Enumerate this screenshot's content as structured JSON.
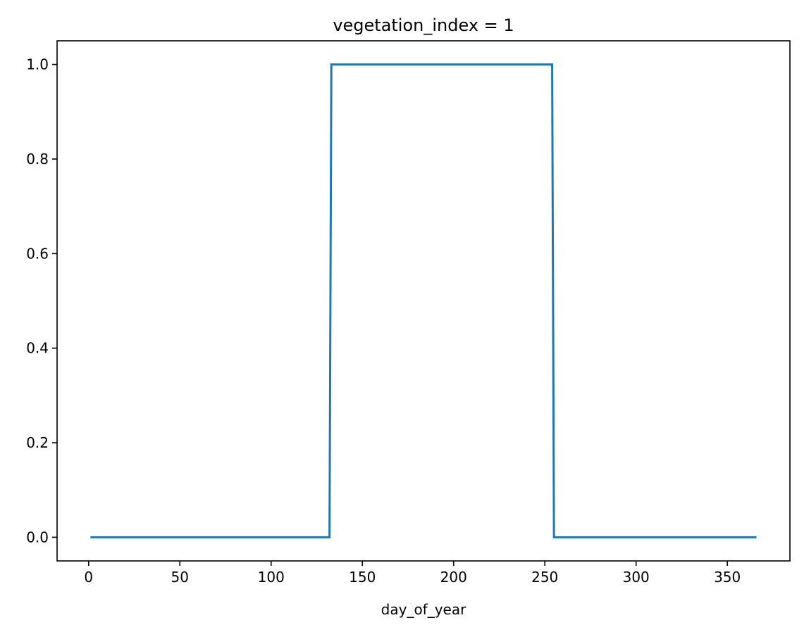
{
  "chart_data": {
    "type": "line",
    "title": "vegetation_index = 1",
    "xlabel": "day_of_year",
    "ylabel": "",
    "xlim": [
      -17.3,
      384.3
    ],
    "ylim": [
      -0.05,
      1.05
    ],
    "xticks": [
      0,
      50,
      100,
      150,
      200,
      250,
      300,
      350
    ],
    "xtick_labels": [
      "0",
      "50",
      "100",
      "150",
      "200",
      "250",
      "300",
      "350"
    ],
    "yticks": [
      0.0,
      0.2,
      0.4,
      0.6,
      0.8,
      1.0
    ],
    "ytick_labels": [
      "0.0",
      "0.2",
      "0.4",
      "0.6",
      "0.8",
      "1.0"
    ],
    "grid": false,
    "legend": "none",
    "colors": {
      "line": "#1f77b4",
      "axes": "#000000"
    },
    "series": [
      {
        "x": [
          1,
          132,
          133,
          254,
          255,
          366
        ],
        "y": [
          0,
          0,
          1,
          1,
          0,
          0
        ]
      }
    ]
  }
}
